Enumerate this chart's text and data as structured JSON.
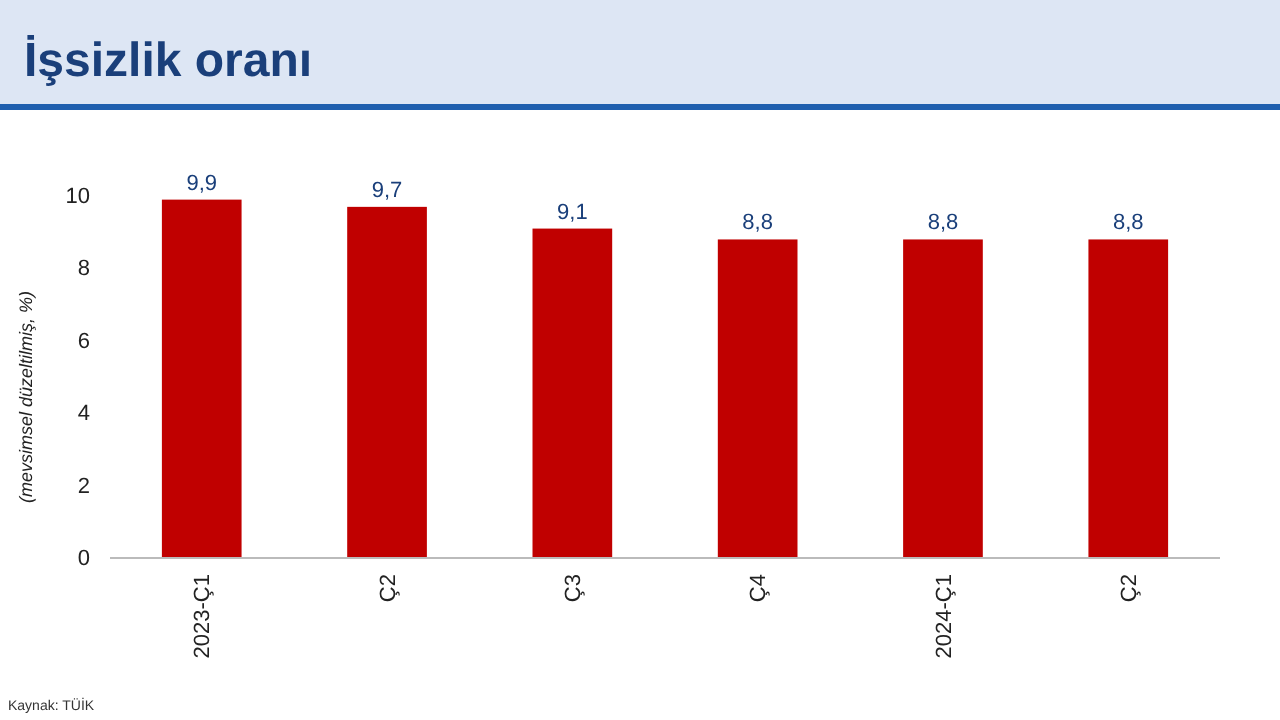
{
  "chart_data": {
    "type": "bar",
    "title": "İşsizlik oranı",
    "ylabel": "(mevsimsel düzeltilmiş, %)",
    "categories": [
      "2023-Ç1",
      "Ç2",
      "Ç3",
      "Ç4",
      "2024-Ç1",
      "Ç2"
    ],
    "values": [
      9.9,
      9.7,
      9.1,
      8.8,
      8.8,
      8.8
    ],
    "value_labels": [
      "9,9",
      "9,7",
      "9,1",
      "8,8",
      "8,8",
      "8,8"
    ],
    "color": "#c00000",
    "ylim": [
      0,
      10
    ],
    "yticks": [
      0,
      2,
      4,
      6,
      8,
      10
    ],
    "grid": false,
    "annotations": [
      "Kaynak: TÜİK"
    ]
  }
}
